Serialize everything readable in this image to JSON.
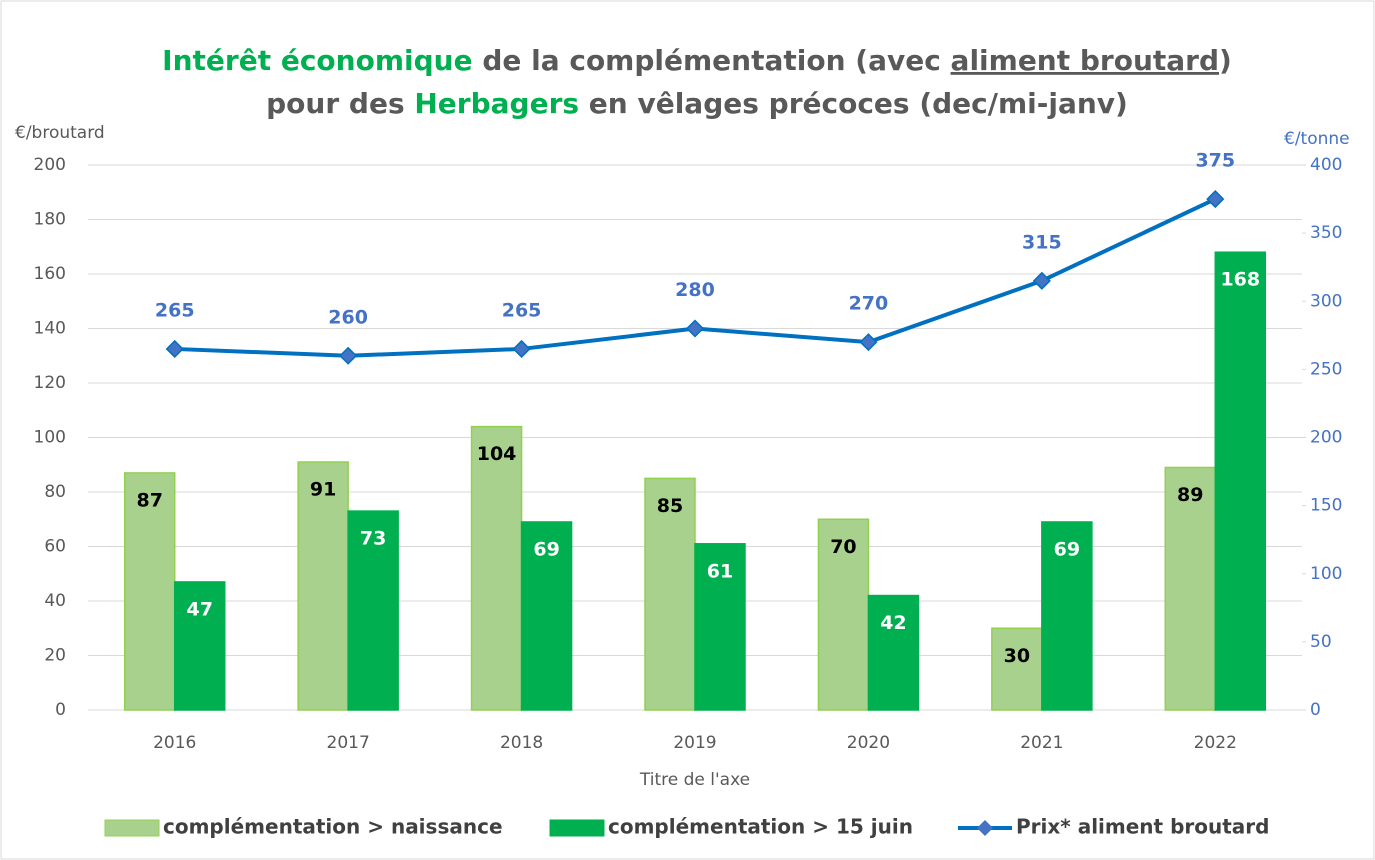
{
  "chart_data": {
    "type": "bar",
    "title": [
      [
        "Intérêt économique",
        " de la complémentation (avec ",
        "aliment broutard",
        ")"
      ],
      [
        "pour des ",
        "Herbagers",
        " en vêlages précoces (dec/mi-janv)"
      ]
    ],
    "ylabel": "€/broutard",
    "y2label": "€/tonne",
    "xlabel": "Titre de l'axe",
    "categories": [
      "2016",
      "2017",
      "2018",
      "2019",
      "2020",
      "2021",
      "2022"
    ],
    "series": [
      {
        "name": "complémentation > naissance",
        "type": "bar",
        "color": "#a9d18e",
        "values": [
          87,
          91,
          104,
          85,
          70,
          30,
          89
        ]
      },
      {
        "name": "complémentation > 15 juin",
        "type": "bar",
        "color": "#00b050",
        "values": [
          47,
          73,
          69,
          61,
          42,
          69,
          168
        ]
      },
      {
        "name": "Prix* aliment broutard",
        "type": "line",
        "axis": "y2",
        "color": "#0070c0",
        "values": [
          265,
          260,
          265,
          280,
          270,
          315,
          375
        ]
      }
    ],
    "ylim": [
      0,
      200
    ],
    "yticks": [
      0,
      20,
      40,
      60,
      80,
      100,
      120,
      140,
      160,
      180,
      200
    ],
    "y2lim": [
      0,
      400
    ],
    "y2ticks": [
      0,
      50,
      100,
      150,
      200,
      250,
      300,
      350,
      400
    ],
    "grid": true,
    "legend": "bottom"
  }
}
